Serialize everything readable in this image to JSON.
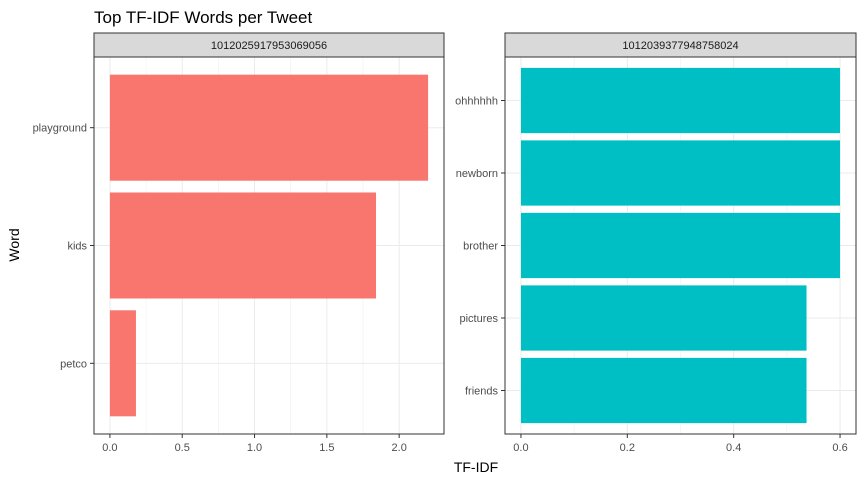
{
  "chart_data": {
    "type": "bar",
    "orientation": "horizontal",
    "title": "Top TF-IDF Words per Tweet",
    "xlabel": "TF-IDF",
    "ylabel": "Word",
    "grid": true,
    "legend": "none",
    "facets": [
      {
        "strip": "1012025917953069056",
        "color": "#F8766D",
        "xlim": [
          -0.11,
          2.31
        ],
        "xticks": [
          0.0,
          0.5,
          1.0,
          1.5,
          2.0
        ],
        "xtick_labels": [
          "0.0",
          "0.5",
          "1.0",
          "1.5",
          "2.0"
        ],
        "categories": [
          "playground",
          "kids",
          "petco"
        ],
        "values": [
          2.2,
          1.84,
          0.18
        ]
      },
      {
        "strip": "1012039377948758024",
        "color": "#00BFC4",
        "xlim": [
          -0.03,
          0.63
        ],
        "xticks": [
          0.0,
          0.2,
          0.4,
          0.6
        ],
        "xtick_labels": [
          "0.0",
          "0.2",
          "0.4",
          "0.6"
        ],
        "categories": [
          "ohhhhhh",
          "newborn",
          "brother",
          "pictures",
          "friends"
        ],
        "values": [
          0.6,
          0.6,
          0.6,
          0.537,
          0.537
        ]
      }
    ]
  }
}
